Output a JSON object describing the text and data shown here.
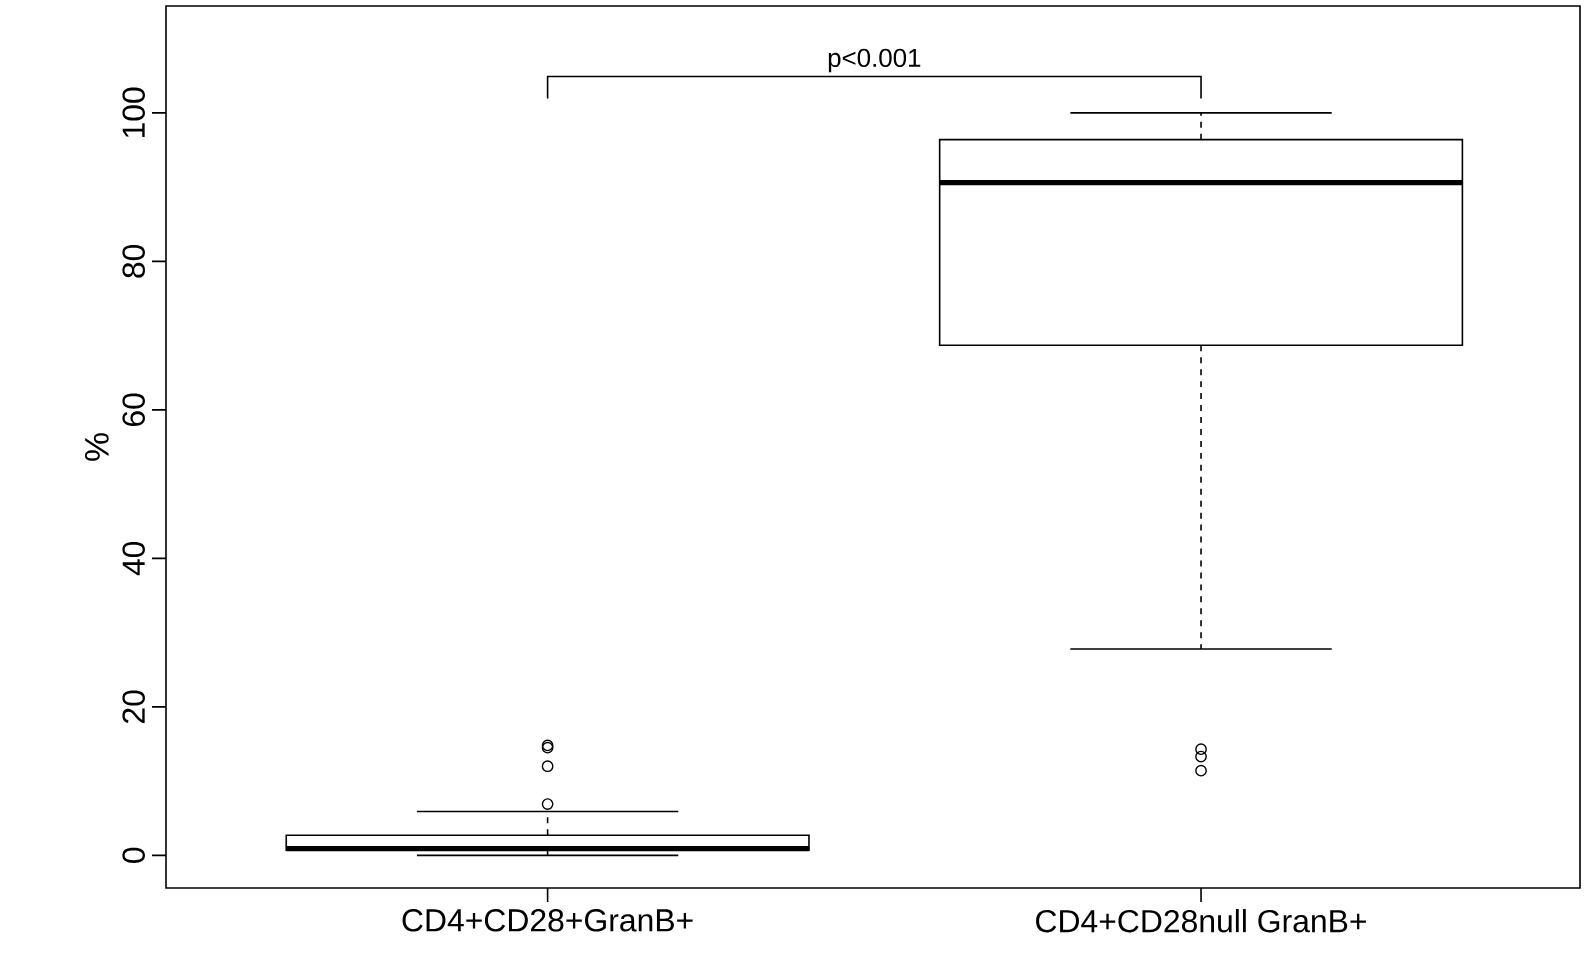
{
  "chart_data": {
    "type": "box",
    "ylabel": "%",
    "categories": [
      "CD4+CD28+GranB+",
      "CD4+CD28null GranB+"
    ],
    "boxes": [
      {
        "low": 0,
        "q1": 0.7,
        "median": 0.9,
        "q3": 2.7,
        "high": 5.9,
        "outliers": [
          6.9,
          12,
          14.5,
          14.8
        ]
      },
      {
        "low": 27.8,
        "q1": 68.7,
        "median": 90.6,
        "q3": 96.4,
        "high": 100,
        "outliers": [
          14.3,
          13.3,
          11.4
        ]
      }
    ],
    "ylim": [
      -4.4,
      114.4
    ],
    "yticks": [
      0,
      20,
      40,
      60,
      80,
      100
    ],
    "annotations": [
      "p<0.001"
    ]
  }
}
